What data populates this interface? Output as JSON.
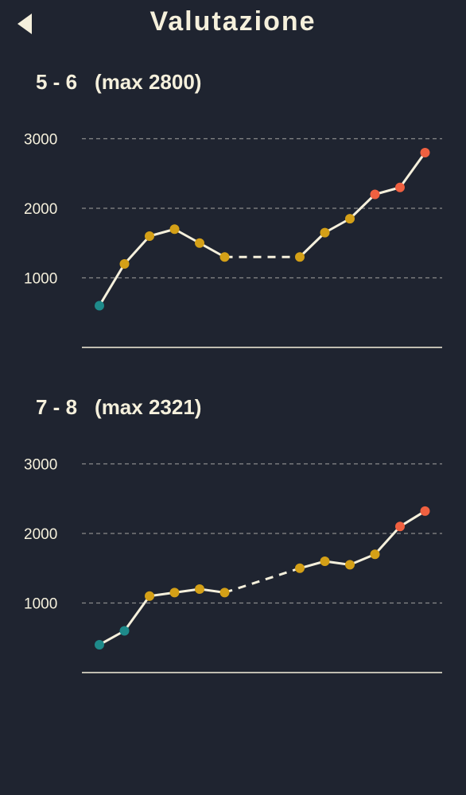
{
  "header": {
    "title": "Valutazione",
    "back_icon": "back-arrow-icon"
  },
  "colors": {
    "background": "#1f2430",
    "text": "#f5f0dc",
    "line": "#f5f0dc",
    "grid": "#8a8a8a",
    "low": "#1e8a8a",
    "mid": "#d4a017",
    "high": "#f06040"
  },
  "chart_data": [
    {
      "type": "line",
      "title_range": "5 - 6",
      "title_max": "(max 2800)",
      "ylim": [
        0,
        3000
      ],
      "yticks": [
        1000,
        2000,
        3000
      ],
      "grid": "dashed horizontal",
      "series": [
        {
          "points": [
            {
              "x": 1,
              "y": 600,
              "level": "low"
            },
            {
              "x": 2,
              "y": 1200,
              "level": "mid"
            },
            {
              "x": 3,
              "y": 1600,
              "level": "mid"
            },
            {
              "x": 4,
              "y": 1700,
              "level": "mid"
            },
            {
              "x": 5,
              "y": 1500,
              "level": "mid"
            },
            {
              "x": 6,
              "y": 1300,
              "level": "mid"
            },
            {
              "x": 9,
              "y": 1300,
              "level": "mid"
            },
            {
              "x": 10,
              "y": 1650,
              "level": "mid"
            },
            {
              "x": 11,
              "y": 1850,
              "level": "mid"
            },
            {
              "x": 12,
              "y": 2200,
              "level": "high"
            },
            {
              "x": 13,
              "y": 2300,
              "level": "high"
            },
            {
              "x": 14,
              "y": 2800,
              "level": "high"
            }
          ],
          "dashed_gaps": [
            [
              6,
              9
            ]
          ]
        }
      ]
    },
    {
      "type": "line",
      "title_range": "7 - 8",
      "title_max": "(max 2321)",
      "ylim": [
        0,
        3000
      ],
      "yticks": [
        1000,
        2000,
        3000
      ],
      "grid": "dashed horizontal",
      "series": [
        {
          "points": [
            {
              "x": 1,
              "y": 400,
              "level": "low"
            },
            {
              "x": 2,
              "y": 600,
              "level": "low"
            },
            {
              "x": 3,
              "y": 1100,
              "level": "mid"
            },
            {
              "x": 4,
              "y": 1150,
              "level": "mid"
            },
            {
              "x": 5,
              "y": 1200,
              "level": "mid"
            },
            {
              "x": 6,
              "y": 1150,
              "level": "mid"
            },
            {
              "x": 9,
              "y": 1500,
              "level": "mid"
            },
            {
              "x": 10,
              "y": 1600,
              "level": "mid"
            },
            {
              "x": 11,
              "y": 1550,
              "level": "mid"
            },
            {
              "x": 12,
              "y": 1700,
              "level": "mid"
            },
            {
              "x": 13,
              "y": 2100,
              "level": "high"
            },
            {
              "x": 14,
              "y": 2321,
              "level": "high"
            }
          ],
          "dashed_gaps": [
            [
              6,
              9
            ]
          ]
        }
      ]
    }
  ]
}
